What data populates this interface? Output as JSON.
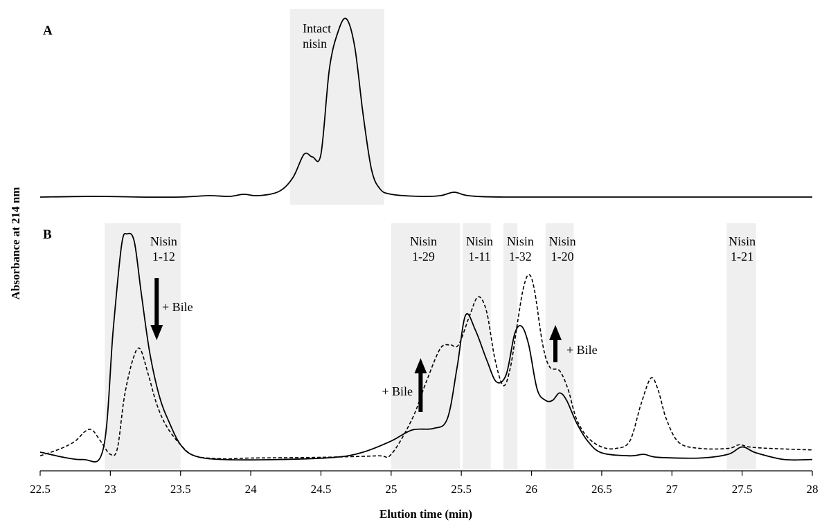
{
  "chart_data": {
    "type": "line",
    "xlabel": "Elution time (min)",
    "ylabel": "Absorbance at 214 nm",
    "xlim": [
      22.5,
      28
    ],
    "xticks": [
      "22.5",
      "23",
      "23.5",
      "24",
      "24.5",
      "25",
      "25.5",
      "26",
      "26.5",
      "27",
      "27.5",
      "28"
    ],
    "grid": false,
    "panels": [
      {
        "label": "A",
        "shaded_regions": [
          [
            24.28,
            24.95
          ]
        ],
        "annotations": [
          {
            "text": "Intact\nnisin",
            "x": 24.37
          }
        ],
        "series": [
          {
            "style": "solid",
            "x": [
              22.5,
              22.9,
              23.2,
              23.5,
              23.7,
              23.85,
              23.95,
              24.05,
              24.2,
              24.3,
              24.38,
              24.44,
              24.5,
              24.56,
              24.62,
              24.68,
              24.74,
              24.8,
              24.86,
              24.92,
              25.0,
              25.2,
              25.35,
              25.45,
              25.55,
              25.8,
              26.5,
              27.5,
              28.0
            ],
            "y": [
              0.0,
              0.01,
              0.0,
              0.0,
              0.02,
              0.01,
              0.04,
              0.02,
              0.08,
              0.28,
              0.62,
              0.58,
              0.62,
              1.85,
              2.38,
              2.58,
              2.18,
              1.2,
              0.4,
              0.12,
              0.04,
              0.01,
              0.02,
              0.07,
              0.02,
              0.0,
              0.0,
              0.0,
              0.0
            ]
          }
        ]
      },
      {
        "label": "B",
        "shaded_regions": [
          [
            22.96,
            23.5
          ],
          [
            25.0,
            25.49
          ],
          [
            25.51,
            25.71
          ],
          [
            25.8,
            25.9
          ],
          [
            26.1,
            26.3
          ],
          [
            27.39,
            27.6
          ]
        ],
        "annotations": [
          {
            "text": "Nisin\n1-12",
            "x": 23.38
          },
          {
            "text": "Nisin\n1-29",
            "x": 25.23
          },
          {
            "text": "Nisin\n1-11",
            "x": 25.63
          },
          {
            "text": "Nisin\n1-32",
            "x": 25.92
          },
          {
            "text": "Nisin\n1-20",
            "x": 26.22
          },
          {
            "text": "Nisin\n1-21",
            "x": 27.5
          }
        ],
        "bile_arrows": [
          {
            "direction": "down",
            "x": 23.33,
            "label": "+ Bile"
          },
          {
            "direction": "up",
            "x": 25.21,
            "label": "+ Bile"
          },
          {
            "direction": "up",
            "x": 26.17,
            "label": "+ Bile"
          }
        ],
        "series": [
          {
            "style": "solid",
            "x": [
              22.5,
              22.8,
              22.95,
              23.02,
              23.08,
              23.12,
              23.17,
              23.22,
              23.28,
              23.35,
              23.42,
              23.5,
              23.6,
              23.8,
              24.2,
              24.6,
              24.8,
              25.0,
              25.15,
              25.3,
              25.4,
              25.47,
              25.53,
              25.6,
              25.68,
              25.75,
              25.82,
              25.88,
              25.93,
              25.98,
              26.04,
              26.1,
              26.15,
              26.2,
              26.25,
              26.32,
              26.4,
              26.5,
              26.7,
              26.8,
              26.9,
              27.2,
              27.4,
              27.5,
              27.6,
              27.8,
              28.0
            ],
            "y": [
              0.15,
              0.05,
              0.2,
              1.8,
              2.95,
              3.1,
              3.0,
              2.3,
              1.5,
              0.9,
              0.55,
              0.25,
              0.1,
              0.05,
              0.05,
              0.08,
              0.15,
              0.3,
              0.45,
              0.47,
              0.6,
              1.3,
              2.0,
              1.8,
              1.4,
              1.1,
              1.2,
              1.75,
              1.85,
              1.6,
              1.0,
              0.85,
              0.85,
              0.95,
              0.85,
              0.55,
              0.3,
              0.14,
              0.1,
              0.12,
              0.08,
              0.07,
              0.12,
              0.22,
              0.14,
              0.05,
              0.05
            ]
          },
          {
            "style": "dashed",
            "x": [
              22.5,
              22.65,
              22.75,
              22.82,
              22.87,
              22.93,
              23.0,
              23.05,
              23.1,
              23.16,
              23.21,
              23.27,
              23.33,
              23.4,
              23.5,
              23.6,
              23.8,
              24.0,
              24.5,
              24.9,
              25.0,
              25.15,
              25.25,
              25.35,
              25.42,
              25.48,
              25.56,
              25.62,
              25.68,
              25.74,
              25.8,
              25.85,
              25.9,
              25.94,
              25.98,
              26.02,
              26.08,
              26.13,
              26.2,
              26.26,
              26.32,
              26.4,
              26.5,
              26.6,
              26.7,
              26.78,
              26.85,
              26.9,
              26.96,
              27.05,
              27.2,
              27.4,
              27.48,
              27.55,
              27.7,
              28.0
            ],
            "y": [
              0.1,
              0.2,
              0.3,
              0.43,
              0.45,
              0.3,
              0.12,
              0.2,
              0.9,
              1.4,
              1.55,
              1.2,
              0.8,
              0.5,
              0.25,
              0.1,
              0.06,
              0.07,
              0.08,
              0.1,
              0.12,
              0.6,
              1.1,
              1.55,
              1.6,
              1.6,
              2.0,
              2.25,
              2.05,
              1.4,
              1.05,
              1.3,
              1.9,
              2.35,
              2.55,
              2.35,
              1.6,
              1.3,
              1.25,
              1.0,
              0.6,
              0.35,
              0.22,
              0.2,
              0.3,
              0.8,
              1.15,
              1.0,
              0.6,
              0.28,
              0.2,
              0.2,
              0.25,
              0.22,
              0.2,
              0.18
            ]
          }
        ]
      }
    ]
  }
}
